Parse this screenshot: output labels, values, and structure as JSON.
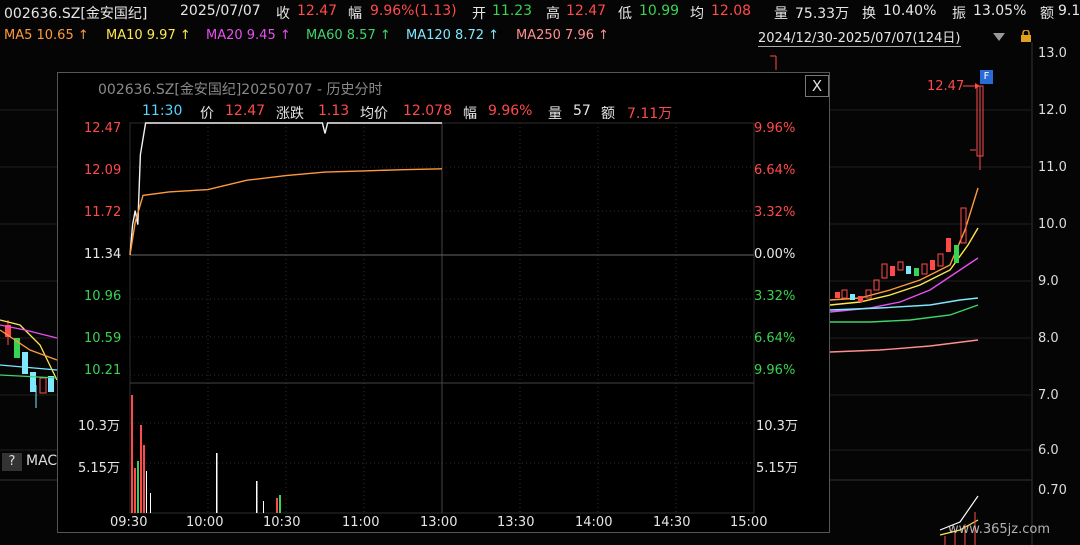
{
  "header": {
    "code": "002636.SZ[金安国纪]",
    "date": "2025/07/07",
    "close_label": "收",
    "close": "12.47",
    "change_label": "幅",
    "change": "9.96%(1.13)",
    "open_label": "开",
    "open": "11.23",
    "high_label": "高",
    "high": "12.47",
    "low_label": "低",
    "low": "10.99",
    "avg_label": "均",
    "avg": "12.08",
    "volume_label": "量",
    "volume": "75.33万",
    "turnover_label": "换",
    "turnover": "10.40%",
    "amplitude_label": "振",
    "amplitude": "13.05%",
    "amount_label": "额",
    "amount": "9.1"
  },
  "ma": [
    {
      "label": "MA5 10.65 ↑",
      "color": "#ff9a3c"
    },
    {
      "label": "MA10 9.97 ↑",
      "color": "#ffe94a"
    },
    {
      "label": "MA20 9.45 ↑",
      "color": "#e84ff0"
    },
    {
      "label": "MA60 8.57 ↑",
      "color": "#3fd56a"
    },
    {
      "label": "MA120 8.72 ↑",
      "color": "#7fe8ff"
    },
    {
      "label": "MA250 7.96 ↑",
      "color": "#ff8f8f"
    }
  ],
  "range": "2024/12/30-2025/07/07(124日)",
  "right_axis": [
    "13.0",
    "12.0",
    "11.0",
    "10.0",
    "9.0",
    "8.0",
    "7.0",
    "6.0",
    "0.70"
  ],
  "kline_high_label": "12.47",
  "f_badge": "F",
  "macd_label": "MAC",
  "help_label": "?",
  "watermark": "www.365jz.com",
  "popup": {
    "title": "002636.SZ[金安国纪]20250707 - 历史分时",
    "close": "X",
    "info": {
      "time": "11:30",
      "price_label": "价",
      "price": "12.47",
      "chg_label": "涨跌",
      "chg": "1.13",
      "avg_label": "均价",
      "avg": "12.078",
      "pct_label": "幅",
      "pct": "9.96%",
      "vol_label": "量",
      "vol": "57",
      "amt_label": "额",
      "amt": "7.11万"
    },
    "left_prices": [
      "12.47",
      "12.09",
      "11.72",
      "11.34",
      "10.96",
      "10.59",
      "10.21"
    ],
    "right_pcts": [
      "9.96%",
      "6.64%",
      "3.32%",
      "0.00%",
      "3.32%",
      "6.64%",
      "9.96%"
    ],
    "vol_labels": [
      "10.3万",
      "5.15万"
    ],
    "time_labels": [
      "09:30",
      "10:00",
      "10:30",
      "11:00",
      "13:00",
      "13:30",
      "14:00",
      "14:30",
      "15:00"
    ]
  },
  "chart_data": {
    "type": "line",
    "title": "",
    "x_sessions": [
      "09:30",
      "10:00",
      "10:30",
      "11:00",
      "13:00"
    ],
    "ylim": [
      10.21,
      12.47
    ],
    "prev_close": 11.34,
    "series": [
      {
        "name": "价",
        "color": "#f2f2f2",
        "x": [
          "09:30",
          "09:31",
          "09:32",
          "09:33",
          "09:34",
          "09:36",
          "10:00",
          "10:30",
          "10:44",
          "10:45",
          "10:46",
          "11:00",
          "11:30"
        ],
        "values": [
          11.34,
          11.6,
          11.72,
          11.6,
          12.2,
          12.47,
          12.47,
          12.47,
          12.47,
          12.38,
          12.47,
          12.47,
          12.47
        ]
      },
      {
        "name": "均价",
        "color": "#ff9a3c",
        "x": [
          "09:30",
          "09:32",
          "09:35",
          "09:45",
          "10:00",
          "10:15",
          "10:30",
          "10:45",
          "11:00",
          "11:15",
          "11:30"
        ],
        "values": [
          11.34,
          11.62,
          11.85,
          11.88,
          11.9,
          11.98,
          12.02,
          12.05,
          12.06,
          12.07,
          12.078
        ]
      }
    ],
    "volume": {
      "ymax_label": "10.3万",
      "mid_label": "5.15万"
    }
  }
}
